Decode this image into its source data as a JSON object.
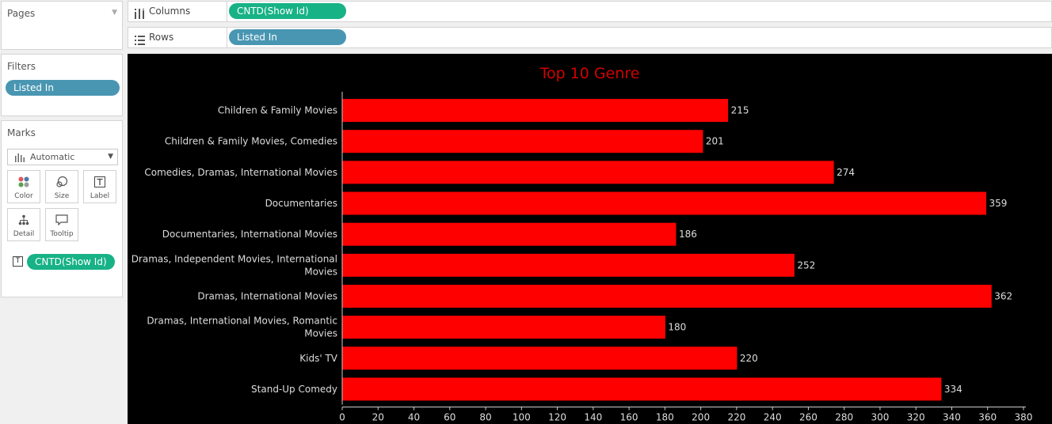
{
  "pages": {
    "title": "Pages"
  },
  "filters": {
    "title": "Filters",
    "pill": "Listed In"
  },
  "marks": {
    "title": "Marks",
    "type": "Automatic",
    "buttons": [
      "Color",
      "Size",
      "Label",
      "Detail",
      "Tooltip"
    ],
    "field_pill": "CNTD(Show Id)"
  },
  "columns": {
    "label": "Columns",
    "pill": "CNTD(Show Id)"
  },
  "rows": {
    "label": "Rows",
    "pill": "Listed In"
  },
  "colors": {
    "bar": "#ff0000",
    "title": "#d10000",
    "viz_bg": "#000000",
    "pill_blue": "#4996b2",
    "pill_green": "#17b286"
  },
  "chart_data": {
    "type": "bar",
    "orientation": "horizontal",
    "title": "Top 10 Genre",
    "categories": [
      "Children & Family Movies",
      "Children & Family Movies, Comedies",
      "Comedies, Dramas, International Movies",
      "Documentaries",
      "Documentaries, International Movies",
      "Dramas, Independent Movies, International Movies",
      "Dramas, International Movies",
      "Dramas, International Movies, Romantic Movies",
      "Kids' TV",
      "Stand-Up Comedy"
    ],
    "category_lines": [
      [
        "Children & Family Movies"
      ],
      [
        "Children & Family Movies, Comedies"
      ],
      [
        "Comedies, Dramas, International Movies"
      ],
      [
        "Documentaries"
      ],
      [
        "Documentaries, International Movies"
      ],
      [
        "Dramas, Independent Movies, International",
        "Movies"
      ],
      [
        "Dramas, International Movies"
      ],
      [
        "Dramas, International Movies, Romantic",
        "Movies"
      ],
      [
        "Kids' TV"
      ],
      [
        "Stand-Up Comedy"
      ]
    ],
    "values": [
      215,
      201,
      274,
      359,
      186,
      252,
      362,
      180,
      220,
      334
    ],
    "xlim": [
      0,
      380
    ],
    "x_ticks": [
      0,
      20,
      40,
      60,
      80,
      100,
      120,
      140,
      160,
      180,
      200,
      220,
      240,
      260,
      280,
      300,
      320,
      340,
      360,
      380
    ],
    "xlabel": "",
    "ylabel": "",
    "data_labels": true,
    "grid": false
  }
}
